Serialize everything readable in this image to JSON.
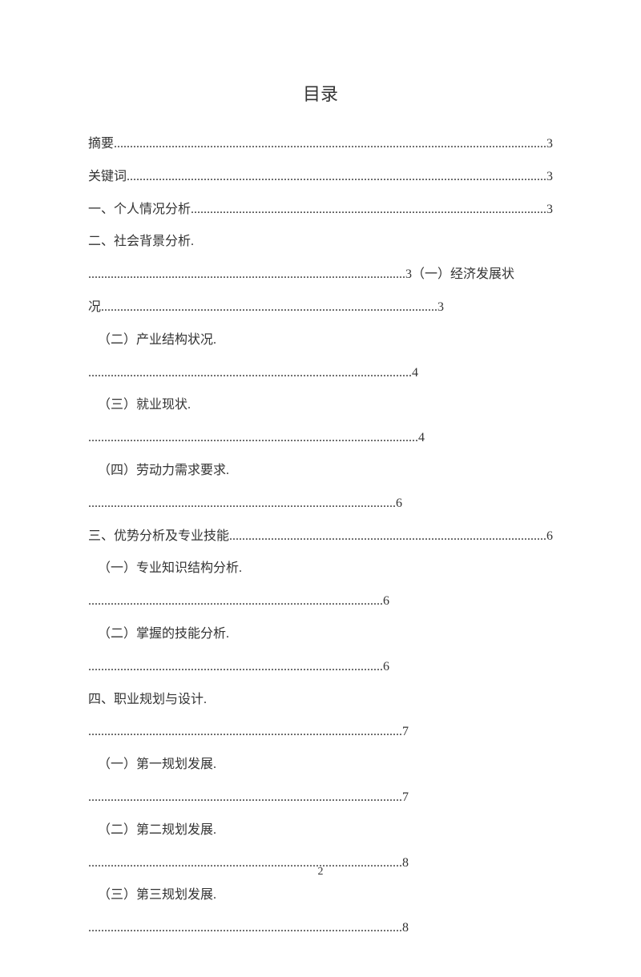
{
  "title": "目录",
  "pageNumber": "2",
  "items": {
    "abstract": {
      "label": "摘要",
      "page": "3"
    },
    "keywords": {
      "label": "关键词",
      "page": "3"
    },
    "s1": {
      "label": "一、个人情况分析",
      "page": "3"
    },
    "s2": {
      "label": "二、社会背景分析.",
      "dots2": "...................................................................................................",
      "page2": "3",
      "s2_1_label": "（一）经济发展状况",
      "s2_1_dots": ".........................................................................................................",
      "s2_1_page": "3"
    },
    "s2_2": {
      "label": "（二）产业结构状况.",
      "dots": ".....................................................................................................",
      "page": "4"
    },
    "s2_3": {
      "label": "（三）就业现状.",
      "dots": ".......................................................................................................",
      "page": "4"
    },
    "s2_4": {
      "label": "（四）劳动力需求要求.",
      "dots": "................................................................................................",
      "page": "6"
    },
    "s3": {
      "label": "三、优势分析及专业技能",
      "page": "6"
    },
    "s3_1": {
      "label": "（一）专业知识结构分析.",
      "dots": "............................................................................................",
      "page": "6"
    },
    "s3_2": {
      "label": "（二）掌握的技能分析.",
      "dots": "............................................................................................",
      "page": "6"
    },
    "s4": {
      "label": "四、职业规划与设计.",
      "dots": "..................................................................................................",
      "page": "7"
    },
    "s4_1": {
      "label": "（一）第一规划发展.",
      "dots": "..................................................................................................",
      "page": "7"
    },
    "s4_2": {
      "label": "（二）第二规划发展.",
      "dots": "..................................................................................................",
      "page": "8"
    },
    "s4_3": {
      "label": "（三）第三规划发展.",
      "dots": "..................................................................................................",
      "page": "8"
    }
  }
}
